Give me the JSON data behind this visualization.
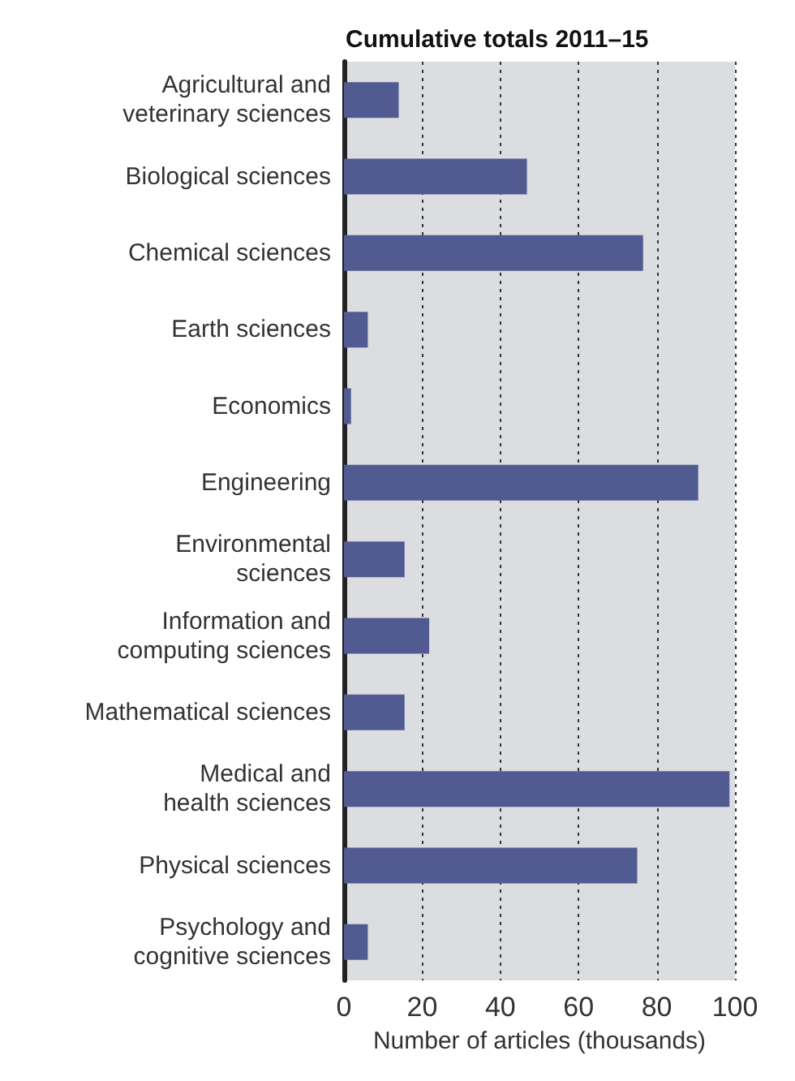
{
  "chart_data": {
    "type": "bar",
    "orientation": "horizontal",
    "title": "Cumulative totals 2011–15",
    "xlabel": "Number of articles (thousands)",
    "categories": [
      "Agricultural and\nveterinary sciences",
      "Biological sciences",
      "Chemical sciences",
      "Earth sciences",
      "Economics",
      "Engineering",
      "Environmental\nsciences",
      "Information and\ncomputing sciences",
      "Mathematical sciences",
      "Medical and\nhealth sciences",
      "Physical sciences",
      "Psychology and\ncognitive sciences"
    ],
    "values": [
      14,
      46.8,
      76.5,
      6.1,
      1.8,
      90.6,
      15.5,
      21.8,
      15.5,
      98.6,
      75,
      6.1
    ],
    "color": "#525b91",
    "xlim": [
      0,
      100
    ],
    "xticks": [
      0,
      20,
      40,
      60,
      80,
      100
    ],
    "grid": "x"
  }
}
